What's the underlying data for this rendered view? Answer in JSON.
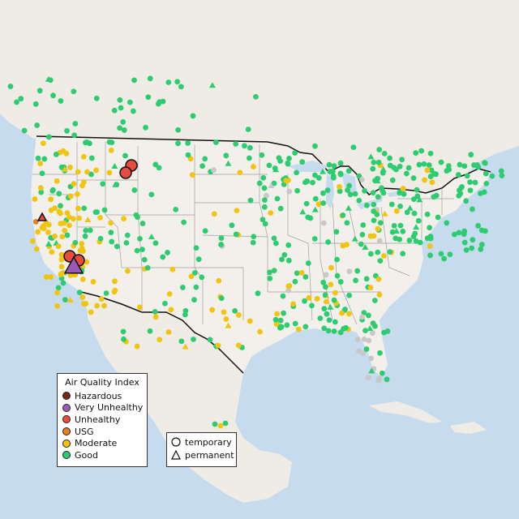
{
  "map": {
    "colors": {
      "water": "#c6dbee",
      "land": "#f2efe9",
      "us_land": "#f2f0ec",
      "state_border": "#999999",
      "country_border": "#111111"
    },
    "categories": {
      "good": {
        "color": "#2ecc71",
        "stroke": "#2ecc71"
      },
      "moderate": {
        "color": "#f1c40f",
        "stroke": "#f1c40f"
      },
      "usg": {
        "color": "#e67e22",
        "stroke": "#e67e22"
      },
      "unhealthy": {
        "color": "#e74c3c",
        "stroke": "#e74c3c"
      },
      "very_unhealthy": {
        "color": "#9b59b6",
        "stroke": "#9b59b6"
      },
      "hazardous": {
        "color": "#7b241c",
        "stroke": "#7b241c"
      },
      "no_data": {
        "color": "#c8c8c8",
        "stroke": "#c8c8c8"
      }
    }
  },
  "legend": {
    "title": "Air Quality Index",
    "items": [
      {
        "label": "Hazardous",
        "color": "#7b241c"
      },
      {
        "label": "Very Unhealthy",
        "color": "#9b59b6"
      },
      {
        "label": "Unhealthy",
        "color": "#e74c3c"
      },
      {
        "label": "USG",
        "color": "#e67e22"
      },
      {
        "label": "Moderate",
        "color": "#f1c40f"
      },
      {
        "label": "Good",
        "color": "#2ecc71"
      }
    ],
    "types": [
      {
        "label": "temporary",
        "shape": "circle"
      },
      {
        "label": "permanent",
        "shape": "triangle"
      }
    ]
  }
}
